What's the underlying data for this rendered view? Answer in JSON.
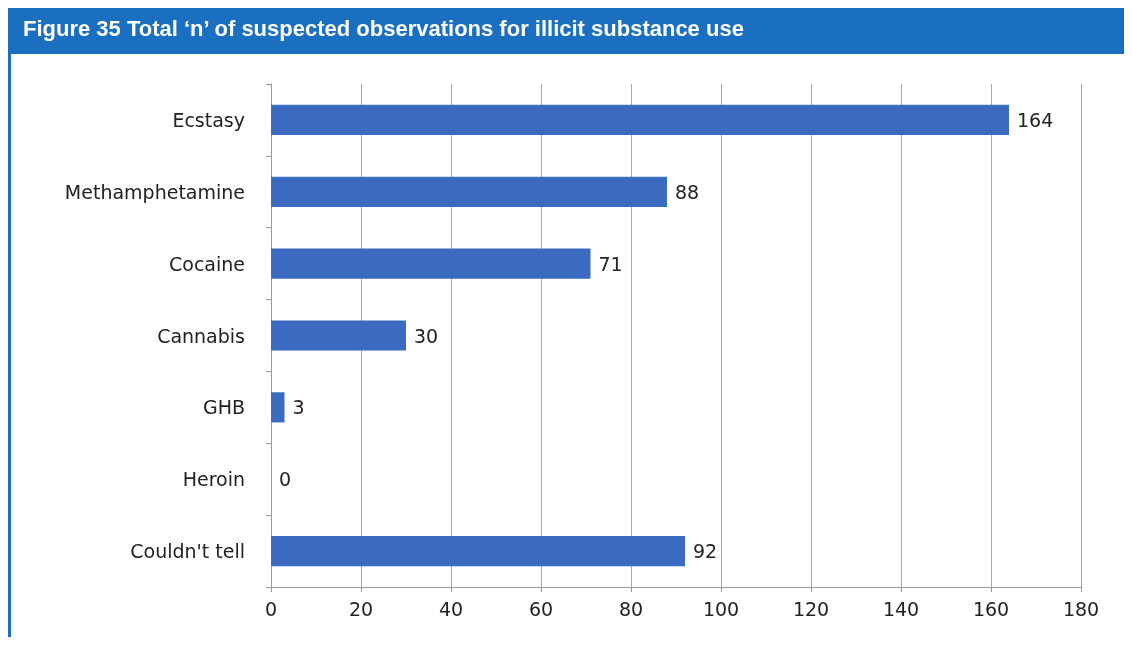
{
  "chart_data": {
    "type": "bar",
    "title": "Figure 35 Total ‘n’ of suspected observations for illicit substance use",
    "orientation": "horizontal",
    "categories": [
      "Ecstasy",
      "Methamphetamine",
      "Cocaine",
      "Cannabis",
      "GHB",
      "Heroin",
      "Couldn't tell"
    ],
    "values": [
      164,
      88,
      71,
      30,
      3,
      0,
      92
    ],
    "color": "#3a6bc0",
    "xlim": [
      0,
      180
    ],
    "xticks": [
      0,
      20,
      40,
      60,
      80,
      100,
      120,
      140,
      160,
      180
    ],
    "grid": "x",
    "data_labels": true
  }
}
